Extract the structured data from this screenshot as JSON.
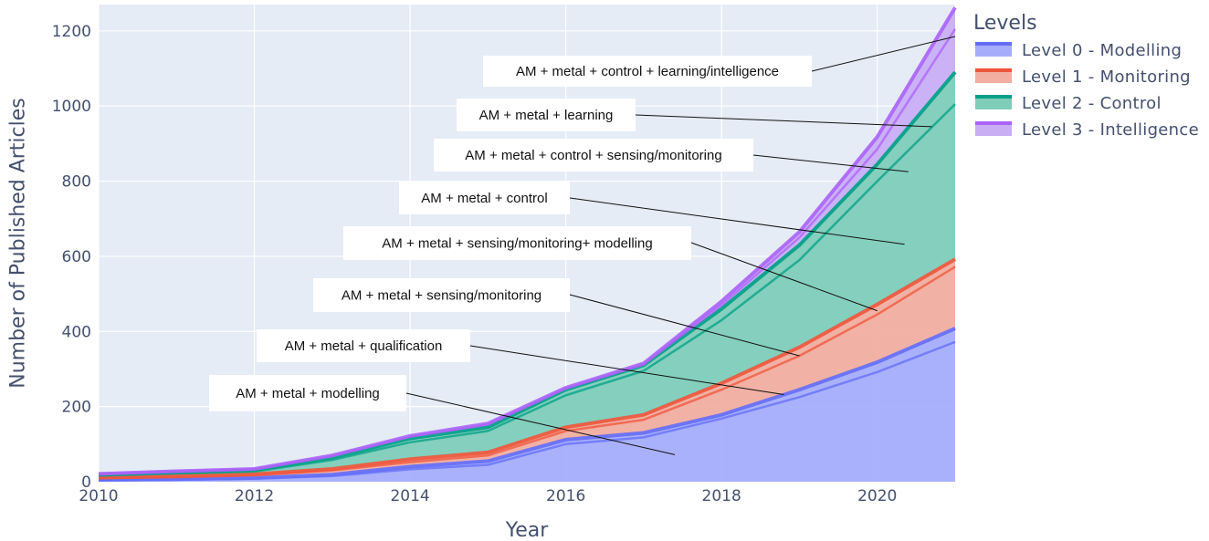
{
  "chart_data": {
    "type": "area",
    "stacked": true,
    "xlabel": "Year",
    "ylabel": "Number of Published Articles",
    "xlim": [
      2010,
      2021
    ],
    "ylim": [
      0,
      1270
    ],
    "x_ticks": [
      2010,
      2012,
      2014,
      2016,
      2018,
      2020
    ],
    "y_ticks": [
      0,
      200,
      400,
      600,
      800,
      1000,
      1200
    ],
    "grid": true,
    "plot_background": "#e5ecf6",
    "legend": {
      "title": "Levels",
      "placement": "right"
    },
    "x": [
      2010,
      2011,
      2012,
      2013,
      2014,
      2015,
      2016,
      2017,
      2018,
      2019,
      2020,
      2021
    ],
    "series": [
      {
        "name": "Level 0 - Modelling",
        "color": "#636efa",
        "fill": "#a6aefc",
        "sub_boundaries": [
          [
            3,
            5,
            8,
            15,
            33,
            45,
            100,
            118,
            168,
            225,
            292,
            372
          ],
          [
            5,
            7,
            10,
            19,
            40,
            55,
            112,
            130,
            178,
            245,
            318,
            408
          ]
        ]
      },
      {
        "name": "Level 1 - Monitoring",
        "color": "#ef553b",
        "fill": "#f2aea0",
        "sub_boundaries": [
          [
            9,
            12,
            17,
            30,
            52,
            70,
            135,
            165,
            245,
            335,
            445,
            572
          ],
          [
            11,
            15,
            20,
            34,
            60,
            78,
            145,
            178,
            262,
            358,
            472,
            592
          ]
        ]
      },
      {
        "name": "Level 2 - Control",
        "color": "#00a086",
        "fill": "#7ecdb9",
        "sub_boundaries": [
          [
            16,
            22,
            27,
            58,
            105,
            135,
            230,
            295,
            430,
            590,
            800,
            1005
          ],
          [
            19,
            25,
            31,
            64,
            115,
            145,
            245,
            310,
            460,
            630,
            845,
            1090
          ]
        ]
      },
      {
        "name": "Level 3 - Intelligence",
        "color": "#ab63fa",
        "fill": "#c9aef4",
        "sub_boundaries": [
          [
            20,
            27,
            33,
            68,
            120,
            152,
            248,
            312,
            470,
            650,
            885,
            1205
          ],
          [
            21,
            28,
            34,
            70,
            122,
            155,
            250,
            315,
            480,
            665,
            918,
            1262
          ]
        ]
      }
    ],
    "annotations": [
      {
        "text": "AM + metal + control + learning/intelligence",
        "target": [
          2021,
          1185
        ]
      },
      {
        "text": "AM + metal + learning",
        "target": [
          2020.7,
          945
        ]
      },
      {
        "text": "AM + metal + control + sensing/monitoring",
        "target": [
          2020.4,
          825
        ]
      },
      {
        "text": "AM + metal + control",
        "target": [
          2020.35,
          632
        ]
      },
      {
        "text": "AM + metal + sensing/monitoring+ modelling",
        "target": [
          2020.0,
          455
        ]
      },
      {
        "text": "AM + metal + sensing/monitoring",
        "target": [
          2019.0,
          335
        ]
      },
      {
        "text": "AM + metal + qualification",
        "target": [
          2018.8,
          232
        ]
      },
      {
        "text": "AM + metal + modelling",
        "target": [
          2017.4,
          72
        ]
      }
    ]
  }
}
